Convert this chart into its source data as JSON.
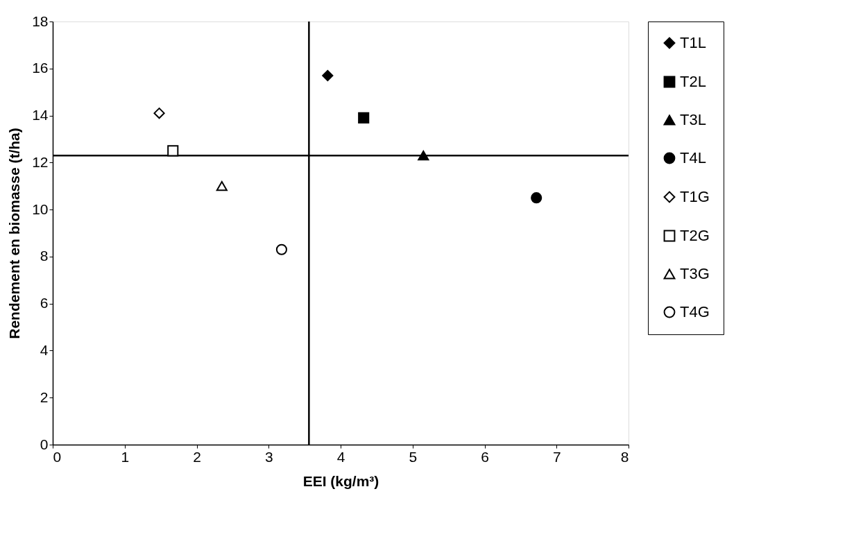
{
  "chart_data": {
    "type": "scatter",
    "xlabel": "EEI (kg/m³)",
    "ylabel": "Rendement en biomasse (t/ha)",
    "xlim": [
      0,
      8
    ],
    "xticks": [
      0,
      1,
      2,
      3,
      4,
      5,
      6,
      7,
      8
    ],
    "ylim": [
      0,
      18
    ],
    "yticks": [
      0,
      2,
      4,
      6,
      8,
      10,
      12,
      14,
      16,
      18
    ],
    "grid": false,
    "legend": "right",
    "series": [
      {
        "name": "T1L",
        "color": "#000000",
        "marker": "diamond",
        "x": [
          3.82
        ],
        "values": [
          15.7
        ]
      },
      {
        "name": "T2L",
        "color": "#000000",
        "marker": "square",
        "x": [
          4.32
        ],
        "values": [
          13.9
        ]
      },
      {
        "name": "T3L",
        "color": "#000000",
        "marker": "triangle",
        "x": [
          5.15
        ],
        "values": [
          12.3
        ]
      },
      {
        "name": "T4L",
        "color": "#000000",
        "marker": "circle",
        "x": [
          6.72
        ],
        "values": [
          10.5
        ]
      },
      {
        "name": "T1G",
        "color": "#000000",
        "marker": "diamond",
        "x": [
          1.48
        ],
        "values": [
          14.1
        ]
      },
      {
        "name": "T2G",
        "color": "#000000",
        "marker": "square",
        "x": [
          1.67
        ],
        "values": [
          12.5
        ]
      },
      {
        "name": "T3G",
        "color": "#000000",
        "marker": "triangle",
        "x": [
          2.35
        ],
        "values": [
          11.0
        ]
      },
      {
        "name": "T4G",
        "color": "#000000",
        "marker": "circle",
        "x": [
          3.18
        ],
        "values": [
          8.3
        ]
      }
    ],
    "ref_lines": [
      {
        "axis": "x",
        "value": 3.56,
        "color": "#000000"
      },
      {
        "axis": "y",
        "value": 12.3,
        "color": "#000000"
      }
    ]
  }
}
